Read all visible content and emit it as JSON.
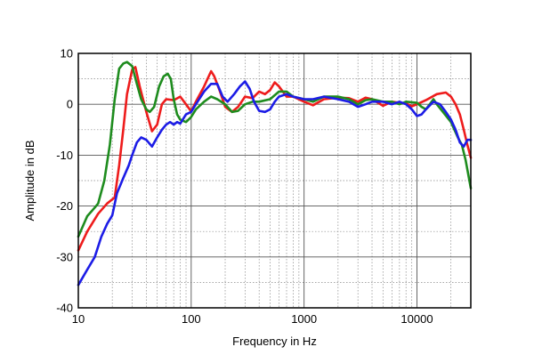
{
  "chart_data": {
    "type": "line",
    "title": "",
    "xlabel": "Frequency in Hz",
    "ylabel": "Amplitude in dB",
    "xscale": "log",
    "xlim": [
      10,
      30000
    ],
    "ylim": [
      -40,
      10
    ],
    "x_ticks": [
      {
        "value": 10,
        "label": "10"
      },
      {
        "value": 100,
        "label": "100"
      },
      {
        "value": 1000,
        "label": "1000"
      },
      {
        "value": 10000,
        "label": "10000"
      }
    ],
    "y_ticks": [
      {
        "value": 10,
        "label": "10"
      },
      {
        "value": 0,
        "label": "0"
      },
      {
        "value": -10,
        "label": "-10"
      },
      {
        "value": -20,
        "label": "-20"
      },
      {
        "value": -30,
        "label": "-30"
      },
      {
        "value": -40,
        "label": "-40"
      }
    ],
    "grid": true,
    "legend": "none",
    "series": [
      {
        "color": "#ee1c1c",
        "points": [
          [
            10,
            -28.7
          ],
          [
            12,
            -25
          ],
          [
            15,
            -21.5
          ],
          [
            18,
            -19.5
          ],
          [
            21,
            -18.3
          ],
          [
            23,
            -12
          ],
          [
            25,
            -5
          ],
          [
            27,
            2
          ],
          [
            30,
            6.8
          ],
          [
            32,
            7.3
          ],
          [
            35,
            3.5
          ],
          [
            40,
            -1.5
          ],
          [
            45,
            -5.3
          ],
          [
            50,
            -4
          ],
          [
            55,
            0
          ],
          [
            60,
            1
          ],
          [
            70,
            0.8
          ],
          [
            80,
            1.5
          ],
          [
            90,
            0
          ],
          [
            100,
            -1.4
          ],
          [
            110,
            0.5
          ],
          [
            130,
            3.5
          ],
          [
            150,
            6.5
          ],
          [
            160,
            5.5
          ],
          [
            180,
            2.5
          ],
          [
            200,
            -0.5
          ],
          [
            230,
            -1.5
          ],
          [
            260,
            -0.5
          ],
          [
            300,
            1.5
          ],
          [
            350,
            1.2
          ],
          [
            400,
            2.5
          ],
          [
            450,
            2
          ],
          [
            500,
            2.8
          ],
          [
            550,
            4.3
          ],
          [
            600,
            3.5
          ],
          [
            700,
            1.5
          ],
          [
            800,
            1.5
          ],
          [
            1000,
            0.5
          ],
          [
            1200,
            -0.2
          ],
          [
            1500,
            1
          ],
          [
            2000,
            1.3
          ],
          [
            2500,
            1.2
          ],
          [
            3000,
            0.5
          ],
          [
            3500,
            1.3
          ],
          [
            4000,
            1
          ],
          [
            5000,
            -0.3
          ],
          [
            6000,
            0.5
          ],
          [
            7000,
            0.3
          ],
          [
            8000,
            0.2
          ],
          [
            9000,
            -0.4
          ],
          [
            10000,
            0
          ],
          [
            12000,
            0.8
          ],
          [
            15000,
            2
          ],
          [
            18000,
            2.3
          ],
          [
            20000,
            1.5
          ],
          [
            22000,
            0
          ],
          [
            24000,
            -2
          ],
          [
            26000,
            -5
          ],
          [
            28000,
            -8
          ],
          [
            30000,
            -10.5
          ]
        ]
      },
      {
        "color": "#1e8c1e",
        "points": [
          [
            10,
            -26
          ],
          [
            12,
            -22
          ],
          [
            14,
            -20.3
          ],
          [
            15,
            -19.5
          ],
          [
            17,
            -15
          ],
          [
            19,
            -8
          ],
          [
            21,
            1
          ],
          [
            23,
            7
          ],
          [
            25,
            8
          ],
          [
            27,
            8.3
          ],
          [
            30,
            7.5
          ],
          [
            33,
            4
          ],
          [
            36,
            1
          ],
          [
            40,
            -1
          ],
          [
            43,
            -1.5
          ],
          [
            47,
            -0.5
          ],
          [
            52,
            3.5
          ],
          [
            57,
            5.5
          ],
          [
            62,
            6
          ],
          [
            66,
            5
          ],
          [
            70,
            1
          ],
          [
            75,
            -2
          ],
          [
            80,
            -3
          ],
          [
            90,
            -3.5
          ],
          [
            100,
            -2.5
          ],
          [
            110,
            -1
          ],
          [
            130,
            0.5
          ],
          [
            150,
            1.5
          ],
          [
            170,
            1
          ],
          [
            200,
            0
          ],
          [
            230,
            -1.5
          ],
          [
            260,
            -1.3
          ],
          [
            300,
            0
          ],
          [
            350,
            0.5
          ],
          [
            400,
            0.5
          ],
          [
            500,
            1
          ],
          [
            600,
            2.5
          ],
          [
            700,
            2.5
          ],
          [
            800,
            1.5
          ],
          [
            1000,
            1
          ],
          [
            1200,
            0.5
          ],
          [
            1500,
            1.5
          ],
          [
            2000,
            1.5
          ],
          [
            2500,
            1
          ],
          [
            3000,
            0
          ],
          [
            3500,
            0.8
          ],
          [
            4000,
            1
          ],
          [
            5000,
            0.5
          ],
          [
            6000,
            0.5
          ],
          [
            7000,
            0
          ],
          [
            8000,
            0.5
          ],
          [
            10000,
            0.3
          ],
          [
            11000,
            -0.5
          ],
          [
            12000,
            -1
          ],
          [
            13000,
            0
          ],
          [
            14000,
            1
          ],
          [
            15000,
            0
          ],
          [
            17000,
            -1.5
          ],
          [
            20000,
            -3.5
          ],
          [
            23000,
            -6.5
          ],
          [
            25000,
            -8
          ],
          [
            27000,
            -11
          ],
          [
            30000,
            -16.5
          ]
        ]
      },
      {
        "color": "#1c1ce6",
        "points": [
          [
            10,
            -35.5
          ],
          [
            12,
            -32.5
          ],
          [
            14,
            -30
          ],
          [
            16,
            -26
          ],
          [
            18,
            -23.5
          ],
          [
            20,
            -21.8
          ],
          [
            22,
            -17.5
          ],
          [
            25,
            -14.5
          ],
          [
            28,
            -12
          ],
          [
            30,
            -10
          ],
          [
            33,
            -7.5
          ],
          [
            36,
            -6.5
          ],
          [
            40,
            -7
          ],
          [
            45,
            -8.3
          ],
          [
            50,
            -6.5
          ],
          [
            55,
            -5
          ],
          [
            60,
            -4
          ],
          [
            65,
            -3.5
          ],
          [
            70,
            -4
          ],
          [
            75,
            -3.5
          ],
          [
            80,
            -3.8
          ],
          [
            90,
            -2
          ],
          [
            100,
            -1.5
          ],
          [
            110,
            0
          ],
          [
            130,
            2.5
          ],
          [
            150,
            4
          ],
          [
            170,
            4
          ],
          [
            190,
            1.5
          ],
          [
            210,
            0.5
          ],
          [
            240,
            2
          ],
          [
            270,
            3.5
          ],
          [
            300,
            4.5
          ],
          [
            330,
            3
          ],
          [
            360,
            0.5
          ],
          [
            400,
            -1.3
          ],
          [
            450,
            -1.5
          ],
          [
            500,
            -1
          ],
          [
            550,
            0.5
          ],
          [
            600,
            1.5
          ],
          [
            700,
            2
          ],
          [
            800,
            1.5
          ],
          [
            1000,
            1
          ],
          [
            1200,
            1
          ],
          [
            1500,
            1.5
          ],
          [
            2000,
            1
          ],
          [
            2500,
            0.5
          ],
          [
            3000,
            -0.5
          ],
          [
            3500,
            0
          ],
          [
            4000,
            0.5
          ],
          [
            5000,
            0.5
          ],
          [
            6000,
            0
          ],
          [
            7000,
            0.5
          ],
          [
            8000,
            0
          ],
          [
            9000,
            -1
          ],
          [
            10000,
            -2.3
          ],
          [
            11000,
            -2
          ],
          [
            12000,
            -1
          ],
          [
            14000,
            0.5
          ],
          [
            16000,
            0
          ],
          [
            18000,
            -1.5
          ],
          [
            20000,
            -3
          ],
          [
            22000,
            -5
          ],
          [
            24000,
            -7.5
          ],
          [
            26000,
            -8.3
          ],
          [
            28000,
            -7
          ],
          [
            30000,
            -7
          ]
        ]
      }
    ]
  }
}
